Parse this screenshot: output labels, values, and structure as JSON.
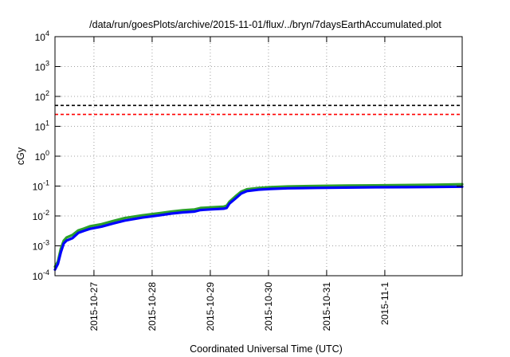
{
  "chart_data": {
    "type": "line",
    "title": "/data/run/goesPlots/archive/2015-11-01/flux/../bryn/7daysEarthAccumulated.plot",
    "xlabel": "Coordinated Universal Time (UTC)",
    "ylabel": "cGy",
    "yscale": "log",
    "ylim": [
      0.0001,
      10000
    ],
    "xlim": [
      0,
      7
    ],
    "y_ticks": [
      {
        "value": 0.0001,
        "base": "10",
        "exp": "-4"
      },
      {
        "value": 0.001,
        "base": "10",
        "exp": "-3"
      },
      {
        "value": 0.01,
        "base": "10",
        "exp": "-2"
      },
      {
        "value": 0.1,
        "base": "10",
        "exp": "-1"
      },
      {
        "value": 1,
        "base": "10",
        "exp": "0"
      },
      {
        "value": 10,
        "base": "10",
        "exp": "1"
      },
      {
        "value": 100,
        "base": "10",
        "exp": "2"
      },
      {
        "value": 1000,
        "base": "10",
        "exp": "3"
      },
      {
        "value": 10000,
        "base": "10",
        "exp": "4"
      }
    ],
    "x_ticks": [
      {
        "value": 0.67,
        "label": "2015-10-27"
      },
      {
        "value": 1.67,
        "label": "2015-10-28"
      },
      {
        "value": 2.67,
        "label": "2015-10-29"
      },
      {
        "value": 3.67,
        "label": "2015-10-30"
      },
      {
        "value": 4.67,
        "label": "2015-10-31"
      },
      {
        "value": 5.67,
        "label": "2015-11-1"
      }
    ],
    "grid": true,
    "thresholds": [
      {
        "value": 50,
        "color": "#000000"
      },
      {
        "value": 25,
        "color": "#ff0000"
      }
    ],
    "x": [
      0,
      0.05,
      0.1,
      0.15,
      0.2,
      0.3,
      0.4,
      0.5,
      0.6,
      0.8,
      1.0,
      1.2,
      1.5,
      1.8,
      2.0,
      2.2,
      2.4,
      2.5,
      2.7,
      2.9,
      2.95,
      3.0,
      3.1,
      3.2,
      3.3,
      3.5,
      3.7,
      4.0,
      4.5,
      5.0,
      5.5,
      6.0,
      6.5,
      7.0
    ],
    "series": [
      {
        "color": "#2ca02c",
        "values": [
          0.0002,
          0.0003,
          0.0008,
          0.0015,
          0.0019,
          0.0023,
          0.0033,
          0.0038,
          0.0045,
          0.0053,
          0.0068,
          0.0085,
          0.0105,
          0.0125,
          0.014,
          0.0155,
          0.0165,
          0.0185,
          0.0195,
          0.0205,
          0.022,
          0.03,
          0.045,
          0.065,
          0.078,
          0.087,
          0.092,
          0.097,
          0.101,
          0.104,
          0.106,
          0.108,
          0.111,
          0.115
        ]
      },
      {
        "color": "#0000ff",
        "values": [
          0.00016,
          0.00025,
          0.0006,
          0.0012,
          0.0015,
          0.0018,
          0.0027,
          0.0032,
          0.0037,
          0.0044,
          0.0056,
          0.007,
          0.0088,
          0.0105,
          0.012,
          0.0132,
          0.014,
          0.0158,
          0.0166,
          0.0175,
          0.0185,
          0.026,
          0.038,
          0.056,
          0.068,
          0.076,
          0.08,
          0.084,
          0.087,
          0.089,
          0.091,
          0.092,
          0.093,
          0.095
        ]
      }
    ]
  }
}
